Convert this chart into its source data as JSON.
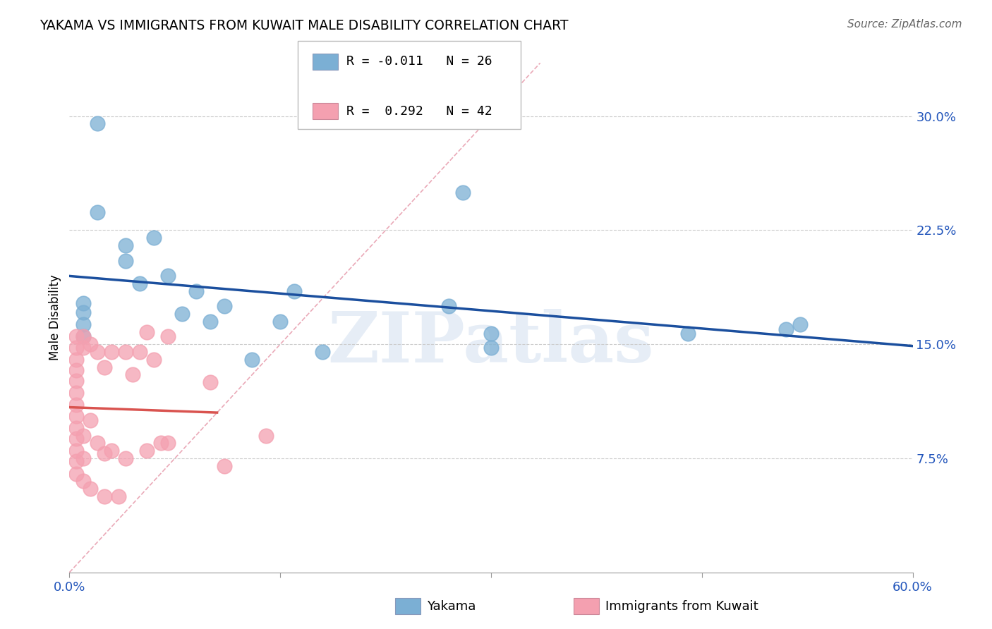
{
  "title": "YAKAMA VS IMMIGRANTS FROM KUWAIT MALE DISABILITY CORRELATION CHART",
  "source": "Source: ZipAtlas.com",
  "ylabel": "Male Disability",
  "R_yakama": -0.011,
  "N_yakama": 26,
  "R_kuwait": 0.292,
  "N_kuwait": 42,
  "xlim": [
    0.0,
    0.6
  ],
  "ylim": [
    0.0,
    0.335
  ],
  "yticks": [
    0.075,
    0.15,
    0.225,
    0.3
  ],
  "ytick_labels": [
    "7.5%",
    "15.0%",
    "22.5%",
    "30.0%"
  ],
  "xticks": [
    0.0,
    0.15,
    0.3,
    0.45,
    0.6
  ],
  "xtick_labels": [
    "0.0%",
    "",
    "",
    "",
    "60.0%"
  ],
  "color_yakama": "#7bafd4",
  "color_kuwait": "#f4a0b0",
  "color_blue_line": "#1b4f9e",
  "color_pink_line": "#d9534f",
  "color_diag": "#e8a0b0",
  "watermark": "ZIPatlas",
  "yakama_x": [
    0.02,
    0.02,
    0.04,
    0.04,
    0.05,
    0.06,
    0.07,
    0.08,
    0.09,
    0.1,
    0.11,
    0.13,
    0.15,
    0.16,
    0.18,
    0.27,
    0.28,
    0.3,
    0.3,
    0.44,
    0.51,
    0.52,
    0.01,
    0.01,
    0.01,
    0.01
  ],
  "yakama_y": [
    0.295,
    0.237,
    0.215,
    0.205,
    0.19,
    0.22,
    0.195,
    0.17,
    0.185,
    0.165,
    0.175,
    0.14,
    0.165,
    0.185,
    0.145,
    0.175,
    0.25,
    0.157,
    0.148,
    0.157,
    0.16,
    0.163,
    0.177,
    0.171,
    0.163,
    0.155
  ],
  "kuwait_x": [
    0.005,
    0.005,
    0.005,
    0.005,
    0.005,
    0.005,
    0.005,
    0.005,
    0.005,
    0.005,
    0.005,
    0.005,
    0.005,
    0.01,
    0.01,
    0.01,
    0.01,
    0.01,
    0.015,
    0.015,
    0.015,
    0.02,
    0.02,
    0.025,
    0.025,
    0.025,
    0.03,
    0.03,
    0.035,
    0.04,
    0.04,
    0.045,
    0.05,
    0.055,
    0.055,
    0.06,
    0.065,
    0.07,
    0.07,
    0.1,
    0.11,
    0.14
  ],
  "kuwait_y": [
    0.155,
    0.148,
    0.14,
    0.133,
    0.126,
    0.118,
    0.11,
    0.103,
    0.095,
    0.088,
    0.08,
    0.073,
    0.065,
    0.155,
    0.148,
    0.09,
    0.075,
    0.06,
    0.15,
    0.1,
    0.055,
    0.145,
    0.085,
    0.135,
    0.078,
    0.05,
    0.145,
    0.08,
    0.05,
    0.145,
    0.075,
    0.13,
    0.145,
    0.158,
    0.08,
    0.14,
    0.085,
    0.155,
    0.085,
    0.125,
    0.07,
    0.09
  ]
}
